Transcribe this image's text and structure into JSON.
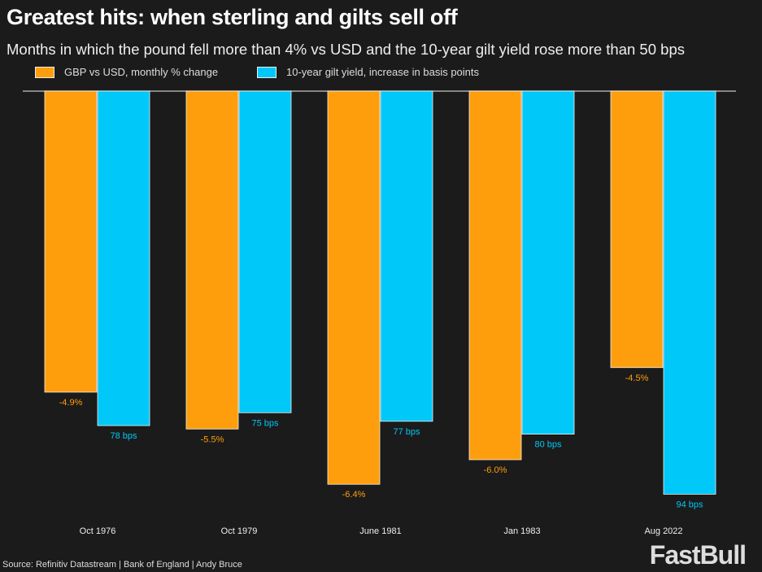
{
  "chart_data": {
    "type": "bar",
    "title": "Greatest hits: when sterling and gilts sell off",
    "subtitle": "Months in which the pound fell more than 4% vs USD and the 10-year gilt yield rose more than 50 bps",
    "categories": [
      "Oct 1976",
      "Oct 1979",
      "June 1981",
      "Jan 1983",
      "Aug 2022"
    ],
    "series": [
      {
        "name": "GBP vs USD, monthly % change",
        "values": [
          -4.9,
          -5.5,
          -6.4,
          -6.0,
          -4.5
        ],
        "labels": [
          "-4.9%",
          "-5.5%",
          "-6.4%",
          "-6.0%",
          "-4.5%"
        ],
        "color": "#FF9E0C"
      },
      {
        "name": "10-year gilt yield, increase in basis points",
        "values": [
          78,
          75,
          77,
          80,
          94
        ],
        "labels": [
          "78 bps",
          "75 bps",
          "77 bps",
          "80 bps",
          "94 bps"
        ],
        "color": "#00C8F8"
      }
    ],
    "legend": "top-left",
    "grid": false,
    "source": "Source: Refinitiv Datastream | Bank of England | Andy Bruce"
  },
  "watermark": "FastBull"
}
